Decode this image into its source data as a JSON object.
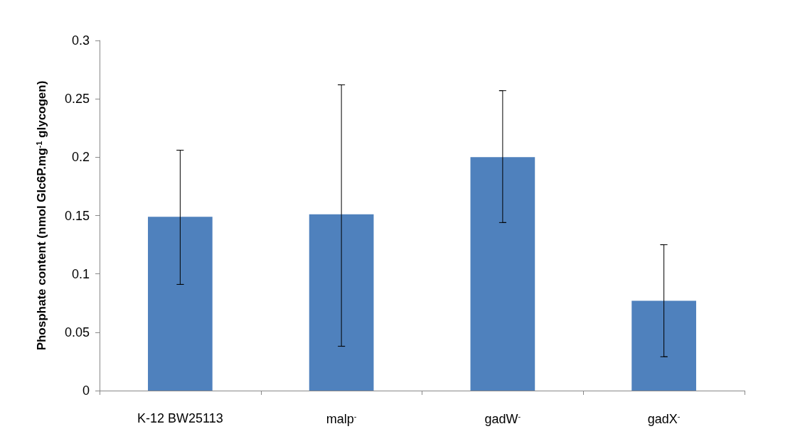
{
  "chart_data": {
    "type": "bar",
    "ylabel": "Phosphate content (nmol Glc6P.mg$^{-1}$ glycogen)",
    "categories": [
      "K-12 BW25113",
      "malp$^{-}$",
      "gadW$^{-}$",
      "gadX$^{-}$"
    ],
    "values": [
      0.149,
      0.151,
      0.2,
      0.077
    ],
    "errors": [
      [
        0.091,
        0.206
      ],
      [
        0.038,
        0.262
      ],
      [
        0.144,
        0.257
      ],
      [
        0.029,
        0.125
      ]
    ],
    "color": "#4f81bd",
    "ylim": [
      0,
      0.3
    ],
    "yticks": [
      0,
      0.05,
      0.1,
      0.15,
      0.2,
      0.25,
      0.3
    ],
    "grid": false
  }
}
